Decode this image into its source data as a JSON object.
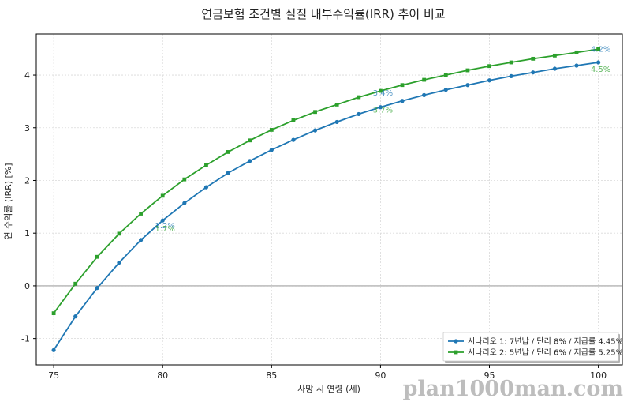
{
  "chart_data": {
    "type": "line",
    "title": "연금보험 조건별 실질 내부수익률(IRR) 추이 비교",
    "xlabel": "사망 시 연령 (세)",
    "ylabel": "연 수익률 (IRR) [%]",
    "xlim": [
      74.2,
      101.1
    ],
    "ylim": [
      -1.5,
      4.78
    ],
    "xticks": [
      75,
      80,
      85,
      90,
      95,
      100
    ],
    "yticks": [
      -1,
      0,
      1,
      2,
      3,
      4
    ],
    "grid": true,
    "legend_position": "bottom-right",
    "x": [
      75,
      76,
      77,
      78,
      79,
      80,
      81,
      82,
      83,
      84,
      85,
      86,
      87,
      88,
      89,
      90,
      91,
      92,
      93,
      94,
      95,
      96,
      97,
      98,
      99,
      100
    ],
    "series": [
      {
        "name": "시나리오 1: 7년납 / 단리 8% / 지급률 4.45%",
        "color": "#1f77b4",
        "marker": "circle",
        "values": [
          -1.22,
          -0.58,
          -0.04,
          0.44,
          0.87,
          1.24,
          1.57,
          1.87,
          2.14,
          2.37,
          2.58,
          2.77,
          2.95,
          3.11,
          3.26,
          3.39,
          3.51,
          3.62,
          3.72,
          3.81,
          3.9,
          3.98,
          4.05,
          4.12,
          4.18,
          4.24
        ]
      },
      {
        "name": "시나리오 2: 5년납 / 단리 6% / 지급률 5.25%",
        "color": "#2ca02c",
        "marker": "square",
        "values": [
          -0.52,
          0.04,
          0.55,
          0.99,
          1.37,
          1.71,
          2.02,
          2.29,
          2.54,
          2.76,
          2.96,
          3.14,
          3.3,
          3.44,
          3.58,
          3.7,
          3.81,
          3.91,
          4.0,
          4.09,
          4.17,
          4.24,
          4.31,
          4.37,
          4.43,
          4.49
        ]
      }
    ],
    "annotations": [
      {
        "x": 80,
        "y": 1.24,
        "text": "1.2%",
        "series": 0,
        "dy": -0.15
      },
      {
        "x": 80,
        "y": 1.71,
        "text": "1.7%",
        "series": 1,
        "dy": -0.68
      },
      {
        "x": 90,
        "y": 3.39,
        "text": "3.4%",
        "series": 0,
        "dy": 0.22
      },
      {
        "x": 90,
        "y": 3.7,
        "text": "3.7%",
        "series": 1,
        "dy": -0.41
      },
      {
        "x": 100,
        "y": 4.24,
        "text": "4.2%",
        "series": 0,
        "dy": 0.2
      },
      {
        "x": 100,
        "y": 4.49,
        "text": "4.5%",
        "series": 1,
        "dy": -0.43
      }
    ]
  },
  "watermark": "plan1000man.com"
}
